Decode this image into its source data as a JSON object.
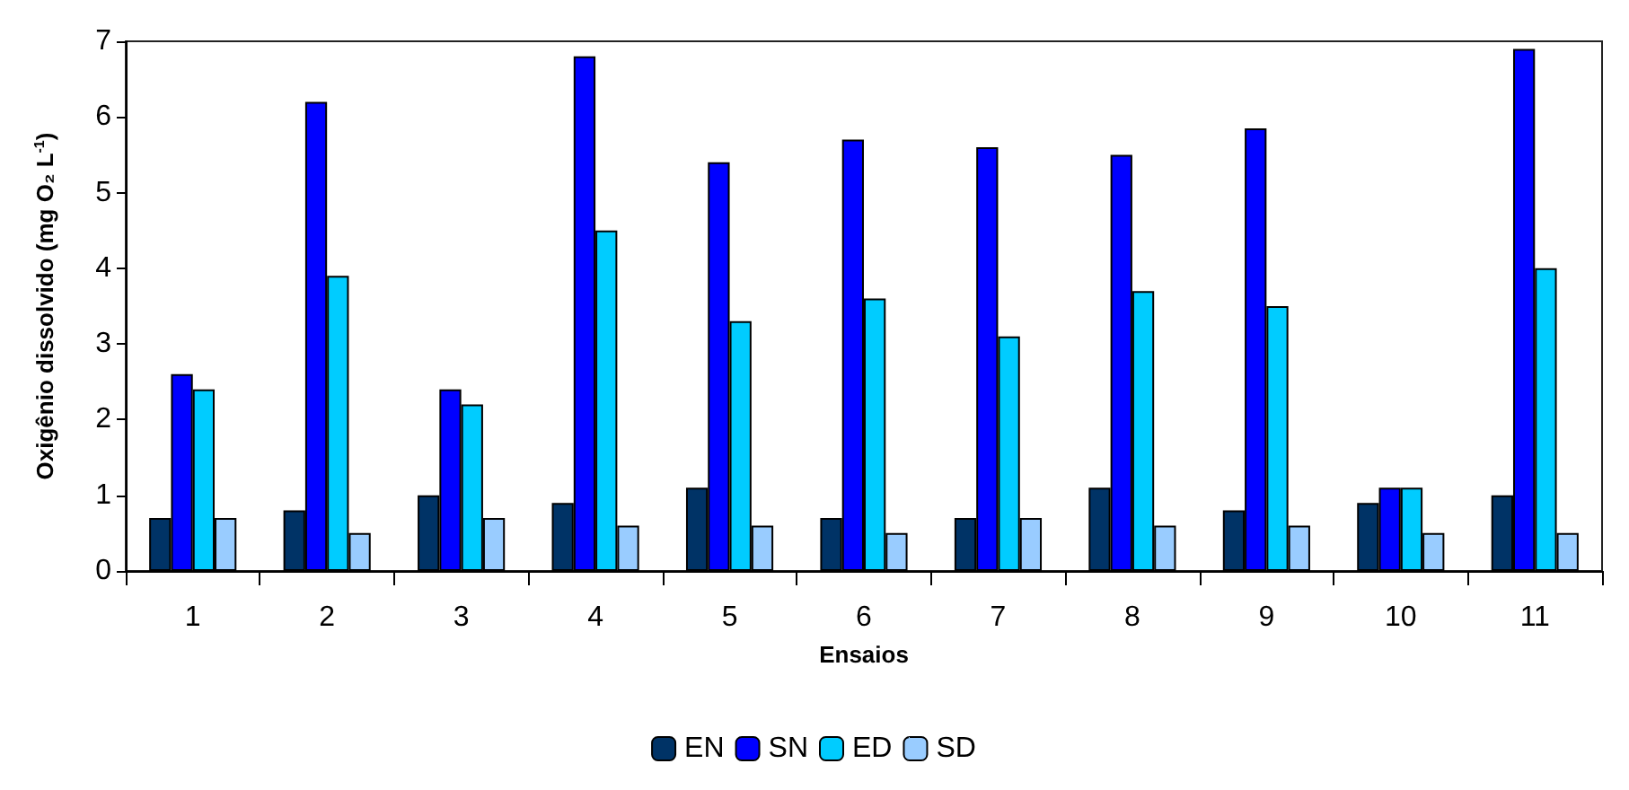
{
  "chart_data": {
    "type": "bar",
    "xlabel": "Ensaios",
    "ylabel": "Oxigênio dissolvido (mg O₂ L$^{-1}$)",
    "categories": [
      "1",
      "2",
      "3",
      "4",
      "5",
      "6",
      "7",
      "8",
      "9",
      "10",
      "11"
    ],
    "series": [
      {
        "name": "EN",
        "color": "#003366",
        "values": [
          0.7,
          0.8,
          1.0,
          0.9,
          1.1,
          0.7,
          0.7,
          1.1,
          0.8,
          0.9,
          1.0
        ]
      },
      {
        "name": "SN",
        "color": "#0000ff",
        "values": [
          2.6,
          6.2,
          2.4,
          6.8,
          5.4,
          5.7,
          5.6,
          5.5,
          5.85,
          1.1,
          6.9
        ]
      },
      {
        "name": "ED",
        "color": "#00ccff",
        "values": [
          2.4,
          3.9,
          2.2,
          4.5,
          3.3,
          3.6,
          3.1,
          3.7,
          3.5,
          1.1,
          4.0
        ]
      },
      {
        "name": "SD",
        "color": "#99ccff",
        "values": [
          0.7,
          0.5,
          0.7,
          0.6,
          0.6,
          0.5,
          0.7,
          0.6,
          0.6,
          0.5,
          0.5
        ]
      }
    ],
    "ylim": [
      0,
      7
    ],
    "yticks": [
      0,
      1,
      2,
      3,
      4,
      5,
      6,
      7
    ],
    "grid": false,
    "legend": "bottom"
  }
}
